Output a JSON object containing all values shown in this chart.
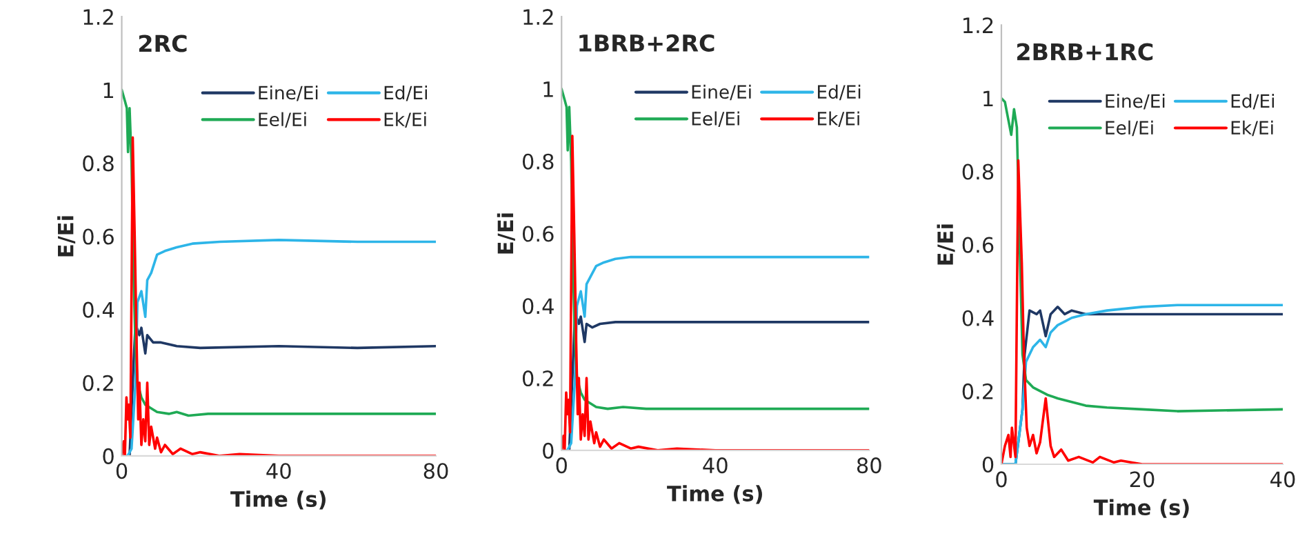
{
  "chart_data": [
    {
      "type": "line",
      "title": "2RC",
      "xlabel": "Time (s)",
      "ylabel": "E/Ei",
      "xlim": [
        0,
        80
      ],
      "xticks": [
        0,
        40,
        80
      ],
      "ylim": [
        0,
        1.2
      ],
      "yticks": [
        0,
        0.2,
        0.4,
        0.6,
        0.8,
        1,
        1.2
      ],
      "grid": false,
      "legend": "top right",
      "series": [
        {
          "name": "Eine/Ei",
          "color": "#1f3864",
          "x": [
            0,
            2,
            3,
            3.5,
            4.5,
            5,
            6,
            6.5,
            8,
            10,
            14,
            20,
            40,
            60,
            80
          ],
          "values": [
            0,
            0,
            0.25,
            0.36,
            0.33,
            0.35,
            0.28,
            0.33,
            0.31,
            0.31,
            0.3,
            0.295,
            0.3,
            0.295,
            0.3
          ]
        },
        {
          "name": "Ed/Ei",
          "color": "#2db5e8",
          "x": [
            0,
            1.5,
            2.5,
            3.5,
            4,
            5,
            6,
            6.5,
            7.5,
            9,
            11,
            14,
            18,
            25,
            40,
            60,
            80
          ],
          "values": [
            0,
            0,
            0.02,
            0.2,
            0.42,
            0.45,
            0.38,
            0.48,
            0.5,
            0.55,
            0.56,
            0.57,
            0.58,
            0.585,
            0.59,
            0.585,
            0.585
          ]
        },
        {
          "name": "Eel/Ei",
          "color": "#1faa55",
          "x": [
            0,
            0.8,
            1.3,
            1.6,
            2,
            2.5,
            3,
            3.5,
            4,
            5,
            6,
            7.5,
            9,
            12,
            14,
            17,
            22,
            40,
            80
          ],
          "values": [
            1,
            0.97,
            0.95,
            0.83,
            0.95,
            0.8,
            0.5,
            0.3,
            0.2,
            0.16,
            0.14,
            0.13,
            0.12,
            0.115,
            0.12,
            0.11,
            0.115,
            0.115,
            0.115
          ]
        },
        {
          "name": "Ek/Ei",
          "color": "#ff0000",
          "x": [
            0,
            0.5,
            0.8,
            1.2,
            1.5,
            1.8,
            2.2,
            2.8,
            3.3,
            3.8,
            4.2,
            4.5,
            5,
            5.5,
            6,
            6.5,
            7,
            7.5,
            8.5,
            9,
            10,
            11,
            13,
            15,
            18,
            20,
            25,
            30,
            40,
            80
          ],
          "values": [
            0,
            0.04,
            0,
            0.16,
            0.1,
            0.14,
            0.05,
            0.87,
            0.6,
            0.3,
            0.1,
            0.2,
            0.03,
            0.1,
            0.04,
            0.2,
            0.03,
            0.08,
            0.02,
            0.05,
            0.01,
            0.03,
            0.005,
            0.02,
            0.005,
            0.01,
            0,
            0.005,
            0,
            0
          ]
        }
      ]
    },
    {
      "type": "line",
      "title": "1BRB+2RC",
      "xlabel": "Time (s)",
      "ylabel": "E/Ei",
      "xlim": [
        0,
        80
      ],
      "xticks": [
        0,
        40,
        80
      ],
      "ylim": [
        0,
        1.2
      ],
      "yticks": [
        0,
        0.2,
        0.4,
        0.6,
        0.8,
        1,
        1.2
      ],
      "grid": false,
      "legend": "top right",
      "series": [
        {
          "name": "Eine/Ei",
          "color": "#1f3864",
          "x": [
            0,
            2,
            3,
            3.5,
            4.5,
            5,
            6,
            6.5,
            8,
            10,
            14,
            20,
            40,
            80
          ],
          "values": [
            0,
            0,
            0.25,
            0.38,
            0.35,
            0.37,
            0.3,
            0.35,
            0.34,
            0.35,
            0.355,
            0.355,
            0.355,
            0.355
          ]
        },
        {
          "name": "Ed/Ei",
          "color": "#2db5e8",
          "x": [
            0,
            1.5,
            2.5,
            3.5,
            4,
            5,
            6,
            6.5,
            7.5,
            9,
            11,
            14,
            18,
            25,
            40,
            80
          ],
          "values": [
            0,
            0,
            0.02,
            0.2,
            0.4,
            0.44,
            0.37,
            0.46,
            0.48,
            0.51,
            0.52,
            0.53,
            0.535,
            0.535,
            0.535,
            0.535
          ]
        },
        {
          "name": "Eel/Ei",
          "color": "#1faa55",
          "x": [
            0,
            0.8,
            1.3,
            1.6,
            2,
            2.5,
            3,
            3.5,
            4,
            5,
            6,
            7.5,
            9,
            12,
            16,
            22,
            40,
            80
          ],
          "values": [
            1,
            0.97,
            0.95,
            0.83,
            0.95,
            0.8,
            0.5,
            0.3,
            0.2,
            0.16,
            0.14,
            0.13,
            0.12,
            0.115,
            0.12,
            0.115,
            0.115,
            0.115
          ]
        },
        {
          "name": "Ek/Ei",
          "color": "#ff0000",
          "x": [
            0,
            0.5,
            0.8,
            1.2,
            1.5,
            1.8,
            2.2,
            2.8,
            3.3,
            3.8,
            4.2,
            4.5,
            5,
            5.5,
            6,
            6.5,
            7,
            7.5,
            8.5,
            9,
            10,
            11,
            13,
            15,
            18,
            20,
            25,
            30,
            40,
            80
          ],
          "values": [
            0,
            0.04,
            0,
            0.16,
            0.1,
            0.14,
            0.05,
            0.87,
            0.6,
            0.3,
            0.1,
            0.2,
            0.03,
            0.1,
            0.04,
            0.2,
            0.03,
            0.08,
            0.02,
            0.05,
            0.01,
            0.03,
            0.005,
            0.02,
            0.005,
            0.01,
            0,
            0.005,
            0,
            0
          ]
        }
      ]
    },
    {
      "type": "line",
      "title": "2BRB+1RC",
      "xlabel": "Time (s)",
      "ylabel": "E/Ei",
      "xlim": [
        0,
        40
      ],
      "xticks": [
        0,
        20,
        40
      ],
      "ylim": [
        0,
        1.2
      ],
      "yticks": [
        0,
        0.2,
        0.4,
        0.6,
        0.8,
        1,
        1.2
      ],
      "grid": false,
      "legend": "top right",
      "series": [
        {
          "name": "Eine/Ei",
          "color": "#1f3864",
          "x": [
            0,
            2,
            3,
            3.3,
            4,
            5,
            5.5,
            6.3,
            7,
            8,
            9,
            10,
            12,
            15,
            40
          ],
          "values": [
            0,
            0,
            0.15,
            0.3,
            0.42,
            0.41,
            0.42,
            0.35,
            0.41,
            0.43,
            0.41,
            0.42,
            0.41,
            0.41,
            0.41
          ]
        },
        {
          "name": "Ed/Ei",
          "color": "#2db5e8",
          "x": [
            0,
            2,
            3,
            3.5,
            4.5,
            5.5,
            6.3,
            7,
            8,
            9,
            10,
            12,
            15,
            20,
            25,
            40
          ],
          "values": [
            0,
            0,
            0.15,
            0.28,
            0.32,
            0.34,
            0.32,
            0.36,
            0.38,
            0.39,
            0.4,
            0.41,
            0.42,
            0.43,
            0.435,
            0.435
          ]
        },
        {
          "name": "Eel/Ei",
          "color": "#1faa55",
          "x": [
            0,
            0.5,
            1,
            1.4,
            1.8,
            2.2,
            2.6,
            3,
            3.5,
            4.5,
            5.5,
            6.5,
            8,
            10,
            12,
            15,
            20,
            25,
            40
          ],
          "values": [
            1,
            0.99,
            0.94,
            0.9,
            0.97,
            0.92,
            0.6,
            0.3,
            0.23,
            0.21,
            0.2,
            0.19,
            0.18,
            0.17,
            0.16,
            0.155,
            0.15,
            0.145,
            0.15
          ]
        },
        {
          "name": "Ek/Ei",
          "color": "#ff0000",
          "x": [
            0,
            0.5,
            1,
            1.3,
            1.5,
            2,
            2.4,
            2.9,
            3.2,
            3.6,
            4,
            4.5,
            5,
            5.5,
            6.3,
            7,
            7.5,
            8.5,
            9.5,
            11,
            13,
            14,
            16,
            17,
            20,
            40
          ],
          "values": [
            0,
            0.05,
            0.08,
            0.02,
            0.1,
            0.02,
            0.83,
            0.55,
            0.3,
            0.1,
            0.05,
            0.08,
            0.03,
            0.06,
            0.18,
            0.05,
            0.02,
            0.04,
            0.01,
            0.02,
            0.005,
            0.02,
            0.005,
            0.01,
            0,
            0
          ]
        }
      ]
    }
  ]
}
